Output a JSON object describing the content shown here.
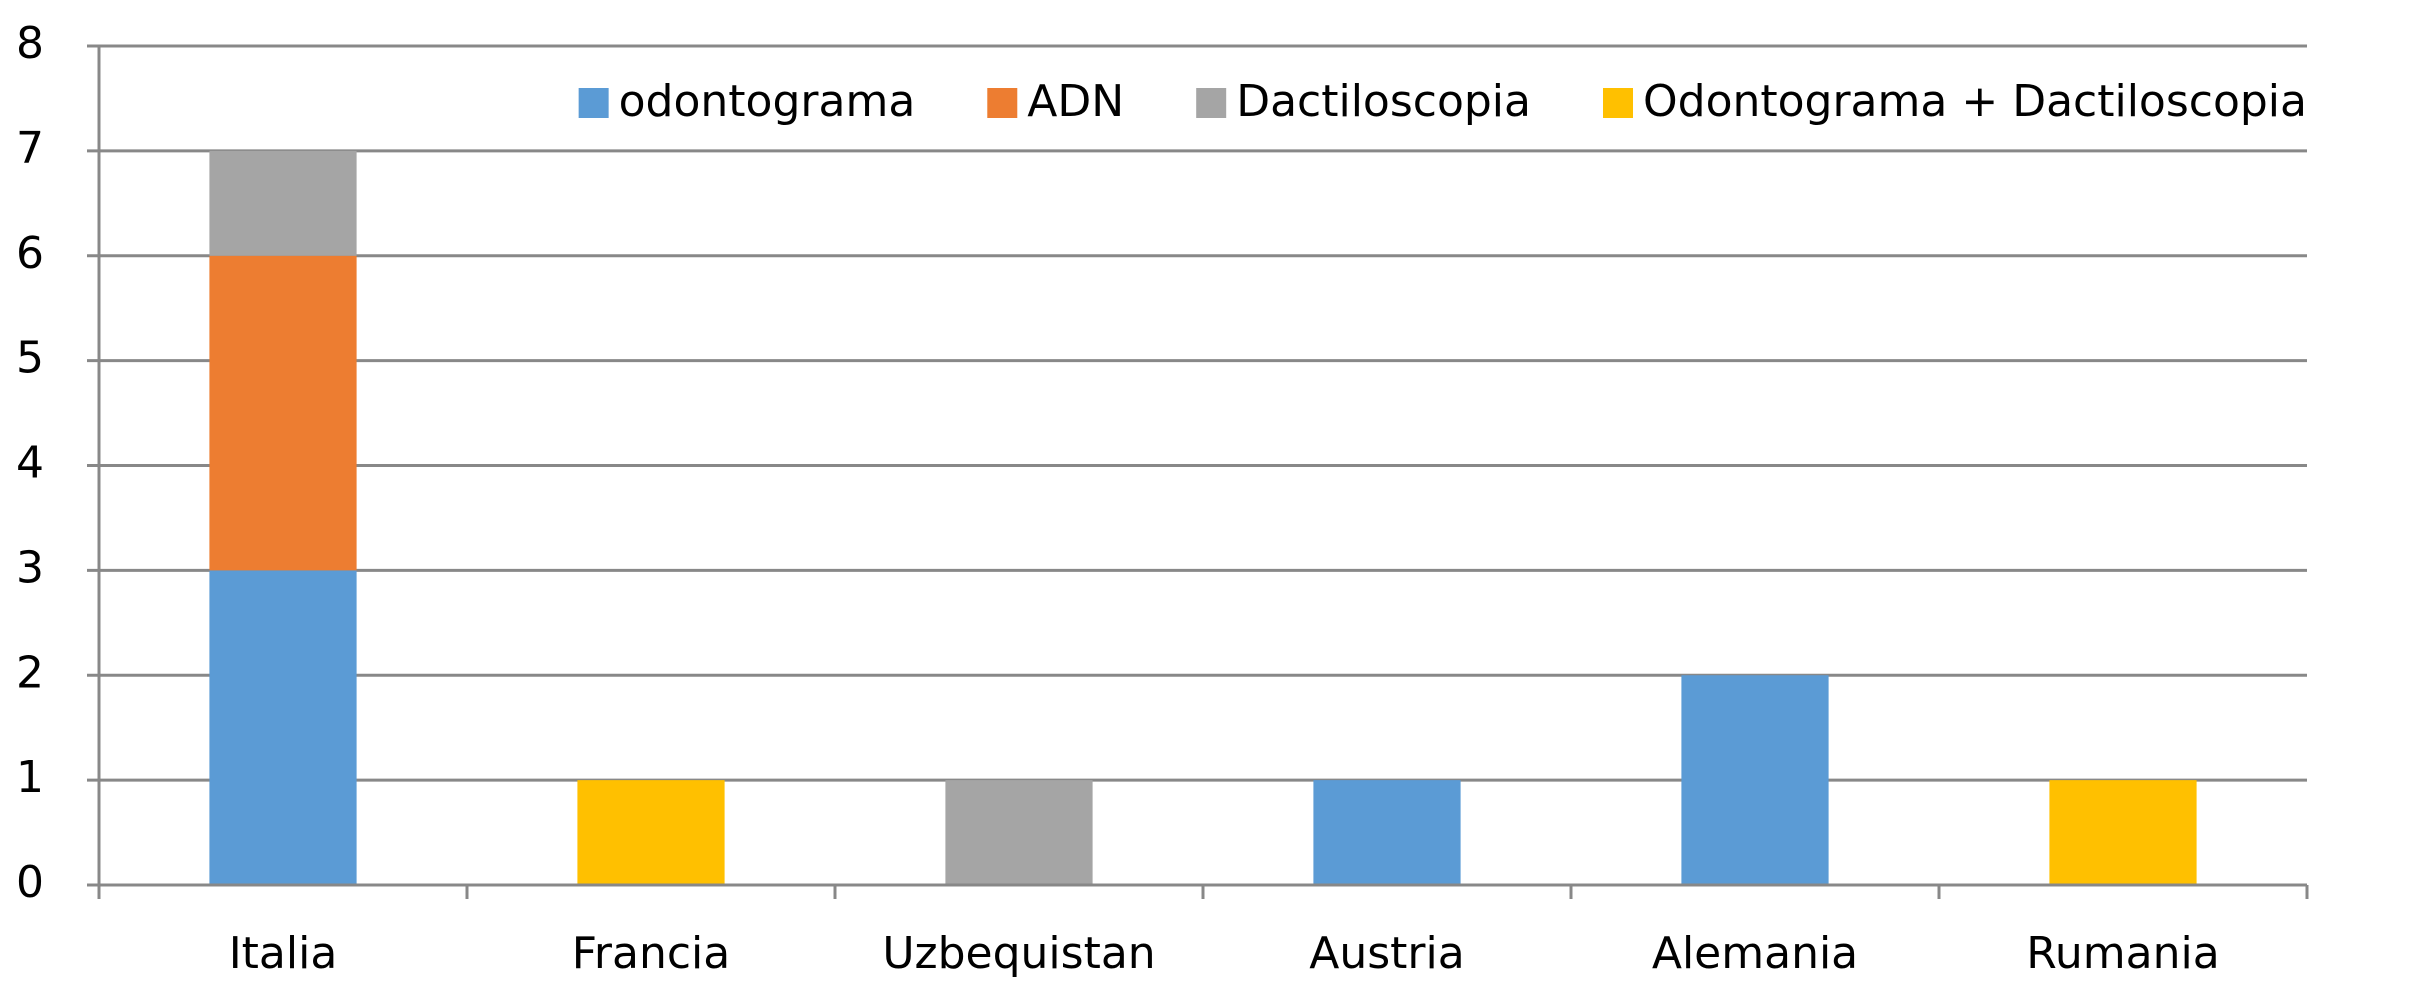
{
  "chart_data": {
    "type": "stacked-bar",
    "categories": [
      "Italia",
      "Francia",
      "Uzbequistan",
      "Austria",
      "Alemania",
      "Rumania"
    ],
    "series": [
      {
        "name": "odontograma",
        "color": "#5b9bd5",
        "values": [
          3,
          0,
          0,
          1,
          2,
          0
        ]
      },
      {
        "name": "ADN",
        "color": "#ed7d31",
        "values": [
          3,
          0,
          0,
          0,
          0,
          0
        ]
      },
      {
        "name": "Dactiloscopia",
        "color": "#a5a5a5",
        "values": [
          1,
          0,
          1,
          0,
          0,
          0
        ]
      },
      {
        "name": "Odontograma + Dactiloscopia",
        "color": "#ffc000",
        "values": [
          0,
          1,
          0,
          0,
          0,
          1
        ]
      }
    ],
    "ylim": [
      0,
      8
    ],
    "yticks": [
      0,
      1,
      2,
      3,
      4,
      5,
      6,
      7,
      8
    ],
    "grid": true,
    "legend": "top-right"
  }
}
